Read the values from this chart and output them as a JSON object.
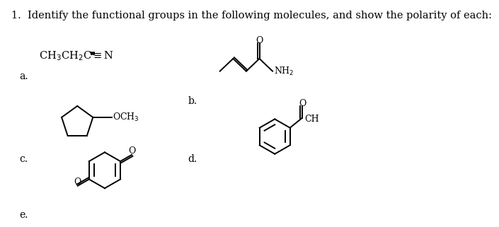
{
  "title": "1.  Identify the functional groups in the following molecules, and show the polarity of each:",
  "background_color": "#ffffff",
  "label_a": "a.",
  "label_b": "b.",
  "label_c": "c.",
  "label_d": "d.",
  "label_e": "e.",
  "label_fontsize": 10,
  "text_color": "#000000",
  "title_fontsize": 10.5,
  "bond_lw": 1.4
}
